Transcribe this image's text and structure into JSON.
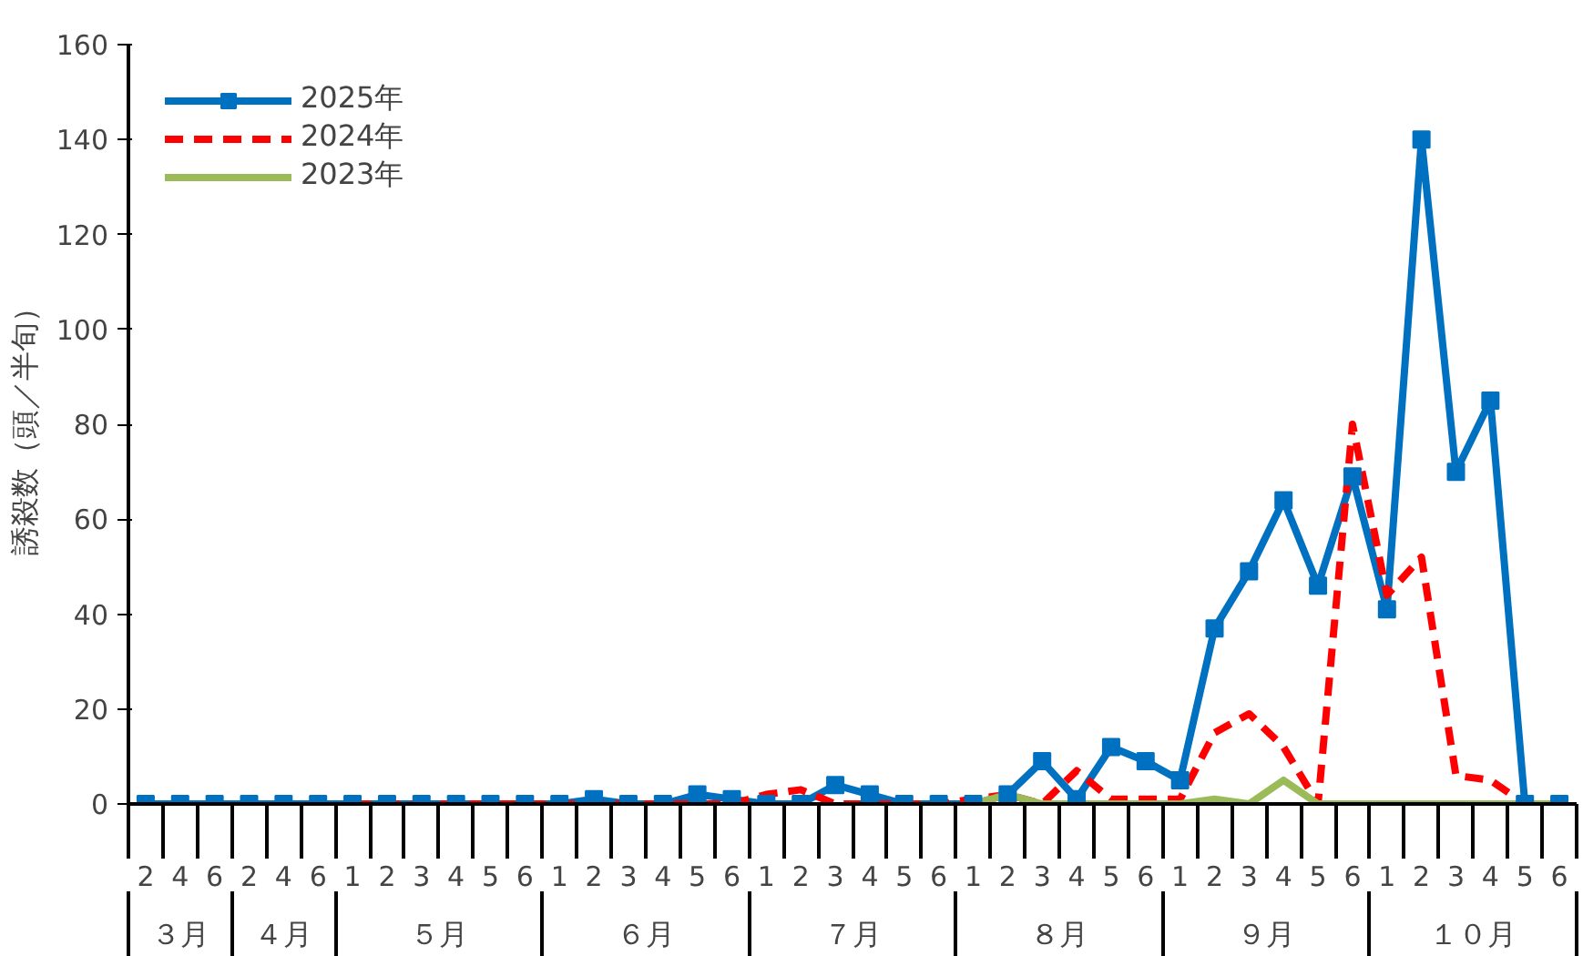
{
  "chart_data": {
    "type": "line",
    "categories": [
      "2",
      "4",
      "6",
      "2",
      "4",
      "6",
      "1",
      "2",
      "3",
      "4",
      "5",
      "6",
      "1",
      "2",
      "3",
      "4",
      "5",
      "6",
      "1",
      "2",
      "3",
      "4",
      "5",
      "6",
      "1",
      "2",
      "3",
      "4",
      "5",
      "6",
      "1",
      "2",
      "3",
      "4",
      "5",
      "6",
      "1",
      "2",
      "3",
      "4",
      "5",
      "6"
    ],
    "annotations": [
      "３月",
      "４月",
      "５月",
      "６月",
      "７月",
      "８月",
      "９月",
      "１０月"
    ],
    "ylabel": "誘殺数（頭／半旬）",
    "ylim": [
      0,
      160
    ],
    "yticks": [
      0,
      20,
      40,
      60,
      80,
      100,
      120,
      140,
      160
    ],
    "grid": false,
    "legend": "top left",
    "series": [
      {
        "name": "2025年",
        "color": "#0070c0",
        "marker": "square",
        "line_style": "solid",
        "values": [
          0,
          0,
          0,
          0,
          0,
          0,
          0,
          0,
          0,
          0,
          0,
          0,
          0,
          1,
          0,
          0,
          2,
          1,
          0,
          0,
          4,
          2,
          0,
          0,
          0,
          2,
          9,
          1,
          12,
          9,
          5,
          37,
          49,
          64,
          46,
          69,
          41,
          140,
          70,
          85,
          0,
          0
        ]
      },
      {
        "name": "2024年",
        "color": "#ff0000",
        "marker": "none",
        "line_style": "dashed",
        "values": [
          null,
          null,
          null,
          null,
          null,
          null,
          0,
          0,
          0,
          0,
          0,
          0,
          0,
          0,
          0,
          0,
          0,
          0,
          2,
          3,
          0,
          0,
          0,
          0,
          1,
          2,
          0,
          7,
          1,
          1,
          1,
          15,
          19,
          12,
          0,
          80,
          44,
          52,
          6,
          5,
          0,
          0
        ]
      },
      {
        "name": "2023年",
        "color": "#9bbb59",
        "marker": "none",
        "line_style": "solid",
        "values": [
          null,
          null,
          null,
          null,
          null,
          null,
          null,
          null,
          null,
          null,
          null,
          null,
          null,
          null,
          null,
          null,
          null,
          null,
          null,
          null,
          null,
          null,
          null,
          null,
          0,
          2,
          0,
          0,
          0,
          0,
          0,
          1,
          0,
          5,
          0,
          0,
          0,
          0,
          0,
          0,
          0,
          0
        ]
      }
    ]
  }
}
